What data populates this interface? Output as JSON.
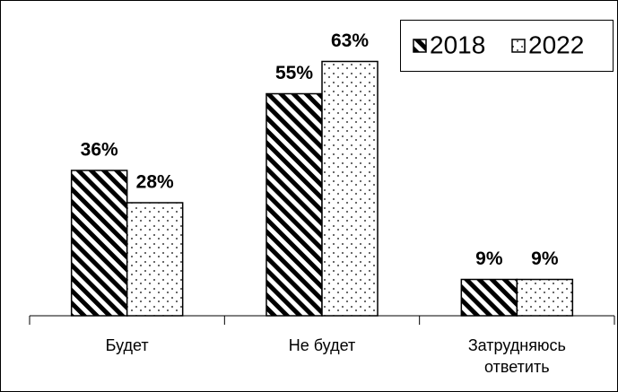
{
  "chart_data": {
    "type": "bar",
    "categories": [
      "Будет",
      "Не будет",
      "Затрудняюсь ответить"
    ],
    "series": [
      {
        "name": "2018",
        "color": "#000000",
        "values": [
          36,
          55,
          9
        ],
        "value_labels": [
          "36%",
          "55%",
          "9%"
        ]
      },
      {
        "name": "2022",
        "color": "#000000",
        "values": [
          28,
          63,
          9
        ],
        "value_labels": [
          "28%",
          "63%",
          "9%"
        ]
      }
    ],
    "legend": "top-right"
  }
}
